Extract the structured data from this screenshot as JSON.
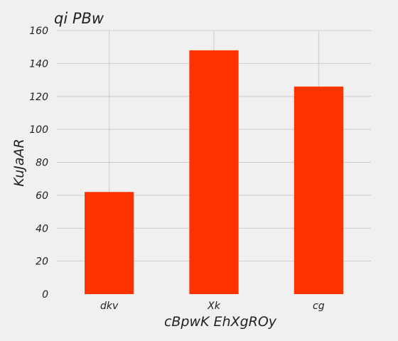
{
  "chart_data": {
    "type": "bar",
    "title": "qi PBw",
    "xlabel": "cBpwK EhXgROy",
    "ylabel": "KuJaAR",
    "categories": [
      "dkv",
      "Xk",
      "cg"
    ],
    "values": [
      62,
      148,
      126
    ],
    "ylim": [
      0,
      160
    ],
    "yticks": [
      0,
      20,
      40,
      60,
      80,
      100,
      120,
      140,
      160
    ],
    "grid": true,
    "bar_color": "#ff3300",
    "background_color": "#f0f0f0",
    "grid_color": "#cbcbcb"
  }
}
